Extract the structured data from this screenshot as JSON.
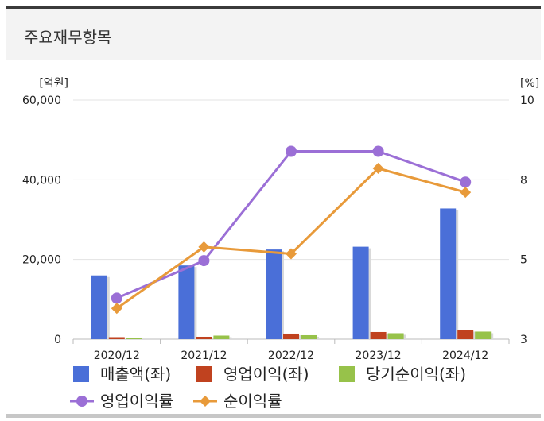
{
  "header": {
    "title": "주요재무항목"
  },
  "chart_data": {
    "type": "bar",
    "categories": [
      "2020/12",
      "2021/12",
      "2022/12",
      "2023/12",
      "2024/12"
    ],
    "left_axis": {
      "unit_label": "[억원]",
      "ticks": [
        "60,000",
        "40,000",
        "20,000",
        "0"
      ],
      "ylim": [
        0,
        60000
      ]
    },
    "right_axis": {
      "unit_label": "[%]",
      "ticks": [
        "10",
        "8",
        "5",
        "3"
      ],
      "ylim": [
        3,
        10
      ]
    },
    "series": [
      {
        "name": "매출액(좌)",
        "kind": "bar",
        "axis": "left",
        "color": "#4a6fd8",
        "values": [
          16000,
          18500,
          22500,
          23200,
          32800
        ]
      },
      {
        "name": "영업이익(좌)",
        "kind": "bar",
        "axis": "left",
        "color": "#c0421f",
        "values": [
          500,
          600,
          1400,
          1800,
          2300
        ]
      },
      {
        "name": "당기순이익(좌)",
        "kind": "bar",
        "axis": "left",
        "color": "#97c24a",
        "values": [
          200,
          900,
          1000,
          1500,
          1900
        ]
      },
      {
        "name": "영업이익률",
        "kind": "line",
        "axis": "right",
        "color": "#9b6fd6",
        "marker": "circle",
        "values": [
          4.2,
          5.3,
          8.5,
          8.5,
          7.6
        ]
      },
      {
        "name": "순이익률",
        "kind": "line",
        "axis": "right",
        "color": "#e89a3a",
        "marker": "diamond",
        "values": [
          3.9,
          5.7,
          5.5,
          8.0,
          7.3
        ]
      }
    ]
  }
}
